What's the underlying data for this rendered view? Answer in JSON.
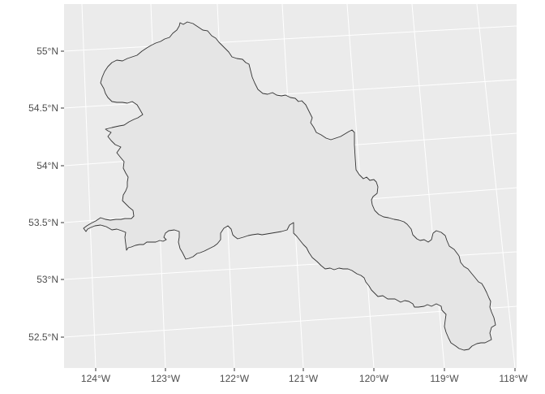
{
  "map": {
    "colors": {
      "panel_background": "#ebebeb",
      "grid": "#ffffff",
      "region_fill": "#e5e5e5",
      "region_stroke": "#333333",
      "label": "#4d4d4d",
      "tick": "#333333"
    },
    "x_labels": [
      {
        "key": "124w",
        "text": "124°W"
      },
      {
        "key": "123w",
        "text": "123°W"
      },
      {
        "key": "122w",
        "text": "122°W"
      },
      {
        "key": "121w",
        "text": "121°W"
      },
      {
        "key": "120w",
        "text": "120°W"
      },
      {
        "key": "119w",
        "text": "119°W"
      },
      {
        "key": "118w",
        "text": "118°W"
      }
    ],
    "y_labels": [
      {
        "key": "55n",
        "text": "55°N"
      },
      {
        "key": "545n",
        "text": "54.5°N"
      },
      {
        "key": "54n",
        "text": "54°N"
      },
      {
        "key": "535n",
        "text": "53.5°N"
      },
      {
        "key": "53n",
        "text": "53°N"
      },
      {
        "key": "525n",
        "text": "52.5°N"
      }
    ]
  }
}
